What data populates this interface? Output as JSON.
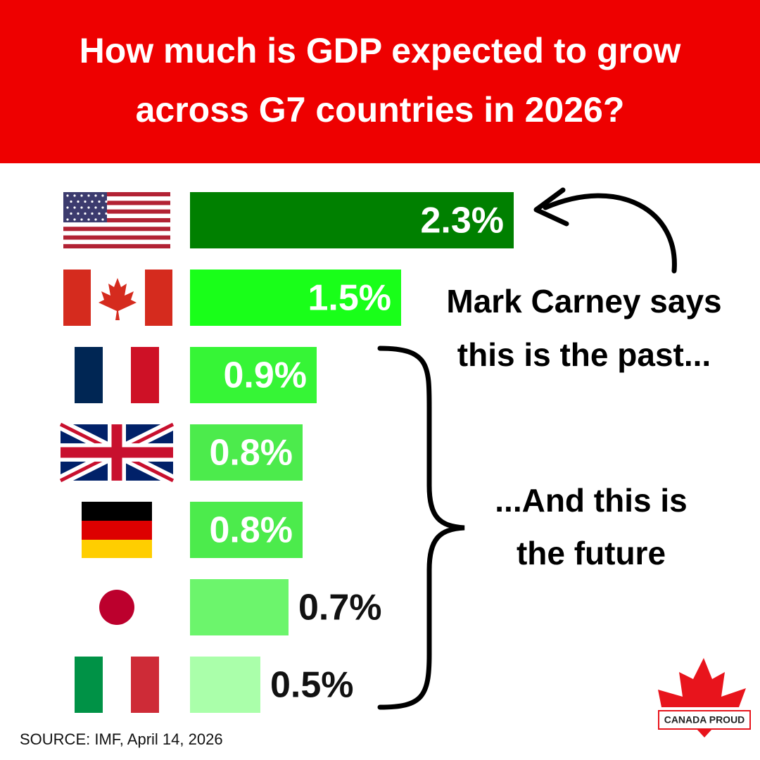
{
  "chart_data": {
    "type": "bar",
    "title": [
      "How much is GDP expected to grow",
      "across G7 countries in 2026?"
    ],
    "values": [
      2.3,
      1.5,
      0.9,
      0.8,
      0.8,
      0.7,
      0.5
    ],
    "value_labels": [
      "2.3%",
      "1.5%",
      "0.9%",
      "0.8%",
      "0.8%",
      "0.7%",
      "0.5%"
    ],
    "colors": [
      "#008000",
      "#19ff19",
      "#36f536",
      "#4ceb4c",
      "#4ceb4c",
      "#6cf56c",
      "#aaffaa"
    ],
    "annotations": [
      [
        "Mark Carney says",
        "this is the past..."
      ],
      [
        "...And this is",
        "the future"
      ]
    ],
    "source": "SOURCE: IMF, April 14, 2026",
    "logo": "CANADA PROUD"
  }
}
